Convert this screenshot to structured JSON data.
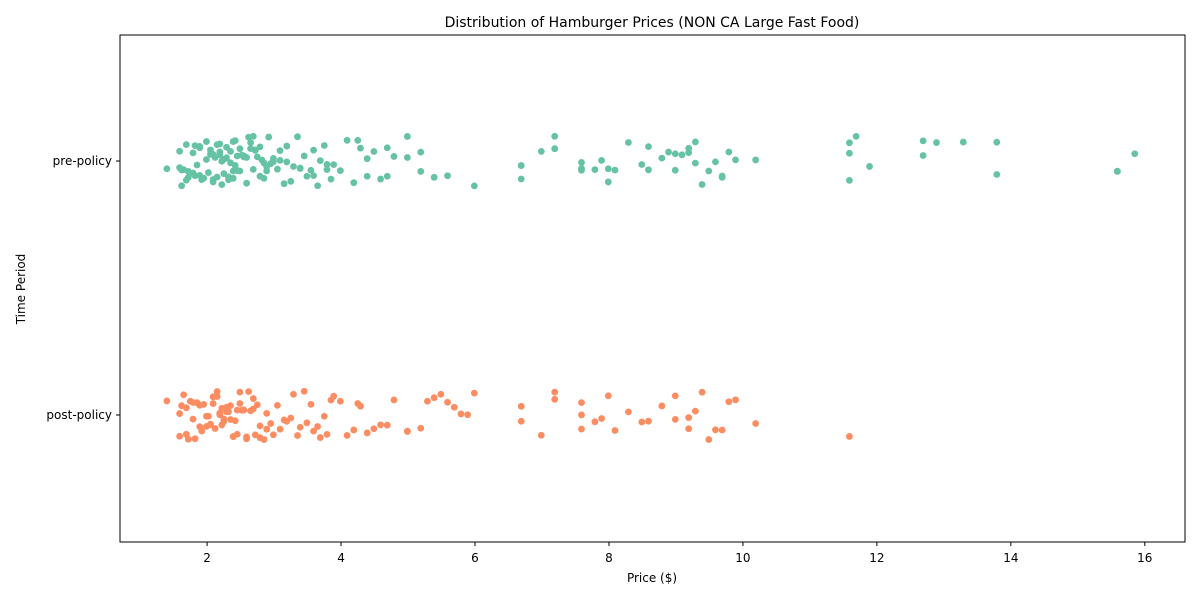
{
  "chart_data": {
    "type": "scatter",
    "title": "Distribution of Hamburger Prices (NON CA Large Fast Food)",
    "xlabel": "Price ($)",
    "ylabel": "Time Period",
    "xlim": [
      0.7,
      16.6
    ],
    "x_ticks": [
      2,
      4,
      6,
      8,
      10,
      12,
      14,
      16
    ],
    "categories": [
      "pre-policy",
      "post-policy"
    ],
    "grid": false,
    "legend": "none",
    "series": [
      {
        "category": "pre-policy",
        "color": "#66c2a5",
        "x": [
          1.4,
          1.59,
          1.59,
          1.62,
          1.62,
          1.65,
          1.69,
          1.69,
          1.72,
          1.72,
          1.79,
          1.79,
          1.82,
          1.82,
          1.85,
          1.89,
          1.89,
          1.89,
          1.92,
          1.95,
          1.99,
          1.99,
          2.02,
          2.05,
          2.05,
          2.09,
          2.09,
          2.09,
          2.12,
          2.12,
          2.15,
          2.15,
          2.19,
          2.19,
          2.19,
          2.22,
          2.22,
          2.25,
          2.25,
          2.29,
          2.29,
          2.32,
          2.32,
          2.35,
          2.35,
          2.39,
          2.39,
          2.39,
          2.42,
          2.42,
          2.45,
          2.45,
          2.49,
          2.49,
          2.52,
          2.55,
          2.55,
          2.59,
          2.59,
          2.62,
          2.65,
          2.65,
          2.69,
          2.69,
          2.72,
          2.72,
          2.75,
          2.79,
          2.79,
          2.82,
          2.85,
          2.85,
          2.89,
          2.89,
          2.92,
          2.95,
          2.99,
          2.99,
          3.05,
          3.09,
          3.09,
          3.15,
          3.19,
          3.19,
          3.25,
          3.29,
          3.35,
          3.39,
          3.39,
          3.45,
          3.49,
          3.55,
          3.59,
          3.59,
          3.65,
          3.69,
          3.75,
          3.79,
          3.79,
          3.85,
          3.89,
          3.99,
          4.09,
          4.19,
          4.25,
          4.29,
          4.39,
          4.39,
          4.49,
          4.59,
          4.69,
          4.69,
          4.79,
          4.99,
          4.99,
          5.19,
          5.19,
          5.39,
          5.59,
          5.99,
          6.69,
          6.69,
          6.99,
          7.19,
          7.19,
          7.59,
          7.59,
          7.59,
          7.79,
          7.89,
          7.99,
          7.99,
          8.09,
          8.29,
          8.49,
          8.59,
          8.59,
          8.79,
          8.89,
          8.99,
          8.99,
          9.09,
          9.19,
          9.19,
          9.29,
          9.29,
          9.39,
          9.49,
          9.59,
          9.69,
          9.69,
          9.79,
          9.89,
          10.19,
          11.59,
          11.59,
          11.59,
          11.69,
          11.89,
          12.69,
          12.69,
          12.89,
          13.29,
          13.79,
          13.79,
          15.59,
          15.59,
          15.85
        ]
      },
      {
        "category": "post-policy",
        "color": "#fc8d62",
        "x": [
          1.4,
          1.59,
          1.59,
          1.62,
          1.65,
          1.69,
          1.69,
          1.72,
          1.75,
          1.79,
          1.79,
          1.82,
          1.85,
          1.89,
          1.89,
          1.92,
          1.95,
          1.99,
          1.99,
          2.02,
          2.05,
          2.05,
          2.09,
          2.09,
          2.12,
          2.15,
          2.15,
          2.19,
          2.19,
          2.22,
          2.22,
          2.25,
          2.25,
          2.29,
          2.29,
          2.32,
          2.35,
          2.35,
          2.39,
          2.39,
          2.42,
          2.45,
          2.45,
          2.49,
          2.49,
          2.52,
          2.55,
          2.59,
          2.59,
          2.62,
          2.65,
          2.69,
          2.69,
          2.72,
          2.75,
          2.79,
          2.79,
          2.85,
          2.89,
          2.89,
          2.95,
          2.99,
          3.05,
          3.09,
          3.15,
          3.19,
          3.25,
          3.29,
          3.35,
          3.39,
          3.45,
          3.49,
          3.55,
          3.59,
          3.65,
          3.69,
          3.75,
          3.79,
          3.85,
          3.89,
          3.99,
          4.09,
          4.19,
          4.25,
          4.29,
          4.39,
          4.49,
          4.59,
          4.69,
          4.79,
          4.99,
          4.99,
          5.19,
          5.29,
          5.39,
          5.49,
          5.59,
          5.69,
          5.79,
          5.89,
          5.99,
          6.69,
          6.69,
          6.99,
          7.19,
          7.19,
          7.59,
          7.59,
          7.59,
          7.79,
          7.89,
          7.99,
          8.09,
          8.29,
          8.49,
          8.59,
          8.79,
          8.99,
          8.99,
          9.19,
          9.19,
          9.29,
          9.39,
          9.49,
          9.59,
          9.69,
          9.79,
          9.89,
          10.19,
          11.59
        ]
      }
    ]
  }
}
